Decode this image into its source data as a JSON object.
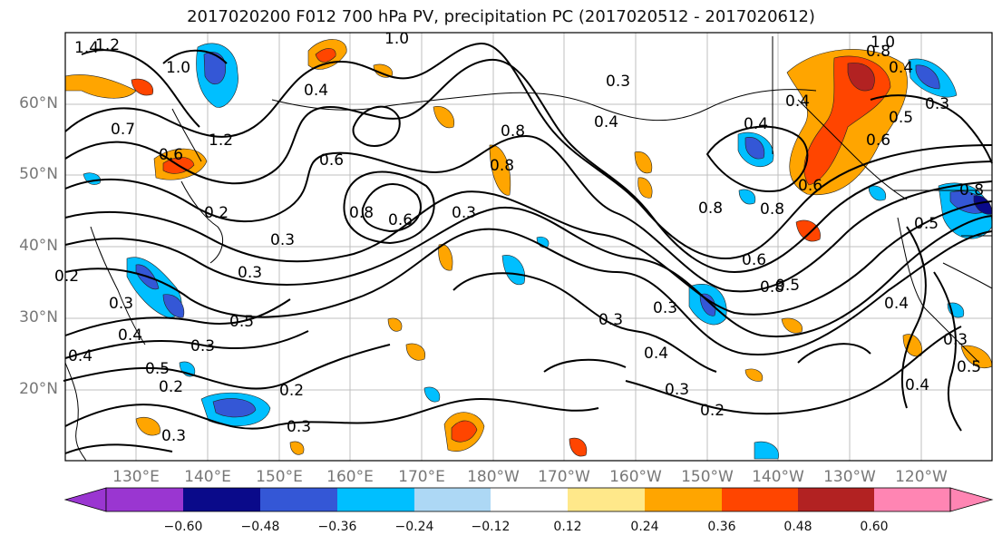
{
  "title": "2017020200 F012 700 hPa PV, precipitation PC (2017020512 - 2017020612)",
  "lat_labels": [
    "60°N",
    "50°N",
    "40°N",
    "30°N",
    "20°N"
  ],
  "lon_labels": [
    "130°E",
    "140°E",
    "150°E",
    "160°E",
    "170°E",
    "180°W",
    "170°W",
    "160°W",
    "150°W",
    "140°W",
    "130°W",
    "120°W"
  ],
  "colorbar": {
    "colors": [
      "#9a36d1",
      "#0a0a8a",
      "#3457d6",
      "#00bfff",
      "#add8f5",
      "#ffffff",
      "#ffe88a",
      "#ffa500",
      "#ff4500",
      "#b22222",
      "#ff85b3"
    ],
    "tick_labels": [
      "−0.60",
      "−0.48",
      "−0.36",
      "−0.24",
      "−0.12",
      "0.12",
      "0.24",
      "0.36",
      "0.48",
      "0.60"
    ]
  },
  "contour_labels": [
    {
      "text": "1.4"
    },
    {
      "text": "1.2"
    },
    {
      "text": "1.0"
    },
    {
      "text": "0.7"
    },
    {
      "text": "0.6"
    },
    {
      "text": "1.2"
    },
    {
      "text": "0.4"
    },
    {
      "text": "0.2"
    },
    {
      "text": "0.3"
    },
    {
      "text": "0.8"
    },
    {
      "text": "0.6"
    },
    {
      "text": "0.3"
    },
    {
      "text": "0.2"
    },
    {
      "text": "0.3"
    },
    {
      "text": "0.4"
    },
    {
      "text": "0.3"
    },
    {
      "text": "0.4"
    },
    {
      "text": "0.8"
    },
    {
      "text": "0.8"
    },
    {
      "text": "0.6"
    },
    {
      "text": "0.4"
    },
    {
      "text": "0.5"
    },
    {
      "text": "0.6"
    },
    {
      "text": "1.0"
    },
    {
      "text": "0.8"
    },
    {
      "text": "0.4"
    },
    {
      "text": "0.4"
    },
    {
      "text": "0.8"
    },
    {
      "text": "0.5"
    },
    {
      "text": "0.3"
    },
    {
      "text": "0.3"
    },
    {
      "text": "0.5"
    },
    {
      "text": "0.4"
    },
    {
      "text": "0.3"
    },
    {
      "text": "0.5"
    },
    {
      "text": "0.2"
    },
    {
      "text": "0.2"
    },
    {
      "text": "0.3"
    },
    {
      "text": "0.3"
    },
    {
      "text": "0.3"
    },
    {
      "text": "0.4"
    },
    {
      "text": "0.3"
    },
    {
      "text": "0.2"
    },
    {
      "text": "0.6"
    },
    {
      "text": "0.8"
    },
    {
      "text": "0.3"
    },
    {
      "text": "0.4"
    },
    {
      "text": "0.5"
    },
    {
      "text": "0.8"
    },
    {
      "text": "0.4"
    },
    {
      "text": "0.3"
    },
    {
      "text": "0.5"
    },
    {
      "text": "1.0"
    },
    {
      "text": "0.8"
    },
    {
      "text": "0.6"
    }
  ]
}
